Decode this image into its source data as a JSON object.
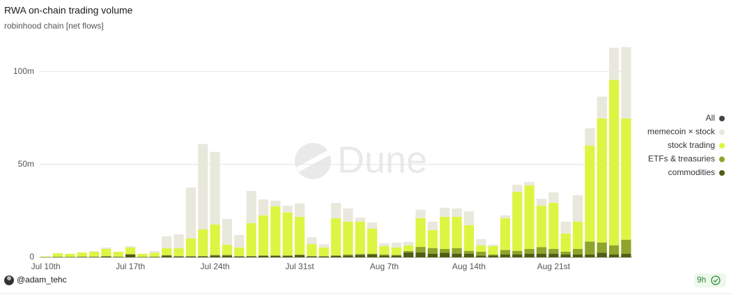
{
  "chart_data": {
    "type": "stacked-bar",
    "title": "RWA on-chain trading volume",
    "subtitle": "robinhood chain [net flows]",
    "watermark": "Dune",
    "legend_all": "All",
    "legend_position": "right",
    "grid": true,
    "categories": [
      "Jul 10th",
      null,
      null,
      null,
      null,
      null,
      null,
      "Jul 17th",
      null,
      null,
      null,
      null,
      null,
      null,
      "Jul 24th",
      null,
      null,
      null,
      null,
      null,
      null,
      "Jul 31st",
      null,
      null,
      null,
      null,
      null,
      null,
      "Aug 7th",
      null,
      null,
      null,
      null,
      null,
      null,
      "Aug 14th",
      null,
      null,
      null,
      null,
      null,
      null,
      "Aug 21st",
      null,
      null,
      null,
      null,
      null,
      null
    ],
    "ylim": [
      0,
      116000000
    ],
    "yticks": [
      0,
      {
        "value": 50000000,
        "label": "50m"
      },
      {
        "value": 100000000,
        "label": "100m"
      }
    ],
    "series": [
      {
        "name": "commodities",
        "color": "#4d5e12",
        "values": [
          100000,
          200000,
          200000,
          300000,
          300000,
          500000,
          300000,
          1500000,
          200000,
          300000,
          1000000,
          500000,
          500000,
          500000,
          1000000,
          1000000,
          500000,
          500000,
          800000,
          800000,
          800000,
          1200000,
          500000,
          500000,
          800000,
          1000000,
          1300000,
          1500000,
          1000000,
          1000000,
          2600000,
          2600000,
          2000000,
          2500000,
          2000000,
          2000000,
          1000000,
          1000000,
          1500000,
          1500000,
          2000000,
          2000000,
          2000000,
          1500000,
          1500000,
          1500000,
          2500000,
          1500000,
          2000000
        ]
      },
      {
        "name": "ETFs & treasuries",
        "color": "#8ea42a",
        "values": [
          0,
          0,
          0,
          0,
          0,
          200000,
          0,
          200000,
          0,
          0,
          200000,
          200000,
          200000,
          300000,
          300000,
          300000,
          200000,
          300000,
          300000,
          300000,
          300000,
          300000,
          300000,
          200000,
          300000,
          500000,
          500000,
          500000,
          500000,
          300000,
          800000,
          3000000,
          3000000,
          2000000,
          3000000,
          1500000,
          2000000,
          500000,
          2500000,
          2000000,
          2500000,
          3500000,
          2500000,
          1500000,
          3000000,
          7000000,
          5500000,
          5000000,
          7500000
        ]
      },
      {
        "name": "stock trading",
        "color": "#dcf542",
        "values": [
          400000,
          2000000,
          1700000,
          2300000,
          2700000,
          3800000,
          2700000,
          3600000,
          1700000,
          2200000,
          3700000,
          4200000,
          9500000,
          14200000,
          16400000,
          5500000,
          4600000,
          17600000,
          21500000,
          26300000,
          23000000,
          20300000,
          6300000,
          4600000,
          20000000,
          17700000,
          17400000,
          13400000,
          4500000,
          4000000,
          3000000,
          15500000,
          9700000,
          17300000,
          16800000,
          13800000,
          3400000,
          4500000,
          17100000,
          31800000,
          34200000,
          22300000,
          24800000,
          9800000,
          14700000,
          51700000,
          66800000,
          89000000,
          65300000
        ]
      },
      {
        "name": "memecoin × stock",
        "color": "#e8e8dc",
        "values": [
          0,
          0,
          0,
          0,
          400000,
          800000,
          0,
          700000,
          0,
          900000,
          6400000,
          7500000,
          27400000,
          46000000,
          39100000,
          13900000,
          6700000,
          17300000,
          8600000,
          3100000,
          3700000,
          7200000,
          3800000,
          1800000,
          8200000,
          7100000,
          2200000,
          3400000,
          1500000,
          2600000,
          1900000,
          4500000,
          4500000,
          4900000,
          4500000,
          7500000,
          3400000,
          800000,
          1500000,
          3800000,
          1900000,
          3800000,
          5700000,
          6400000,
          14300000,
          9300000,
          11700000,
          17300000,
          38400000
        ]
      }
    ]
  },
  "footer": {
    "author": "@adam_tehc",
    "age": "9h"
  }
}
